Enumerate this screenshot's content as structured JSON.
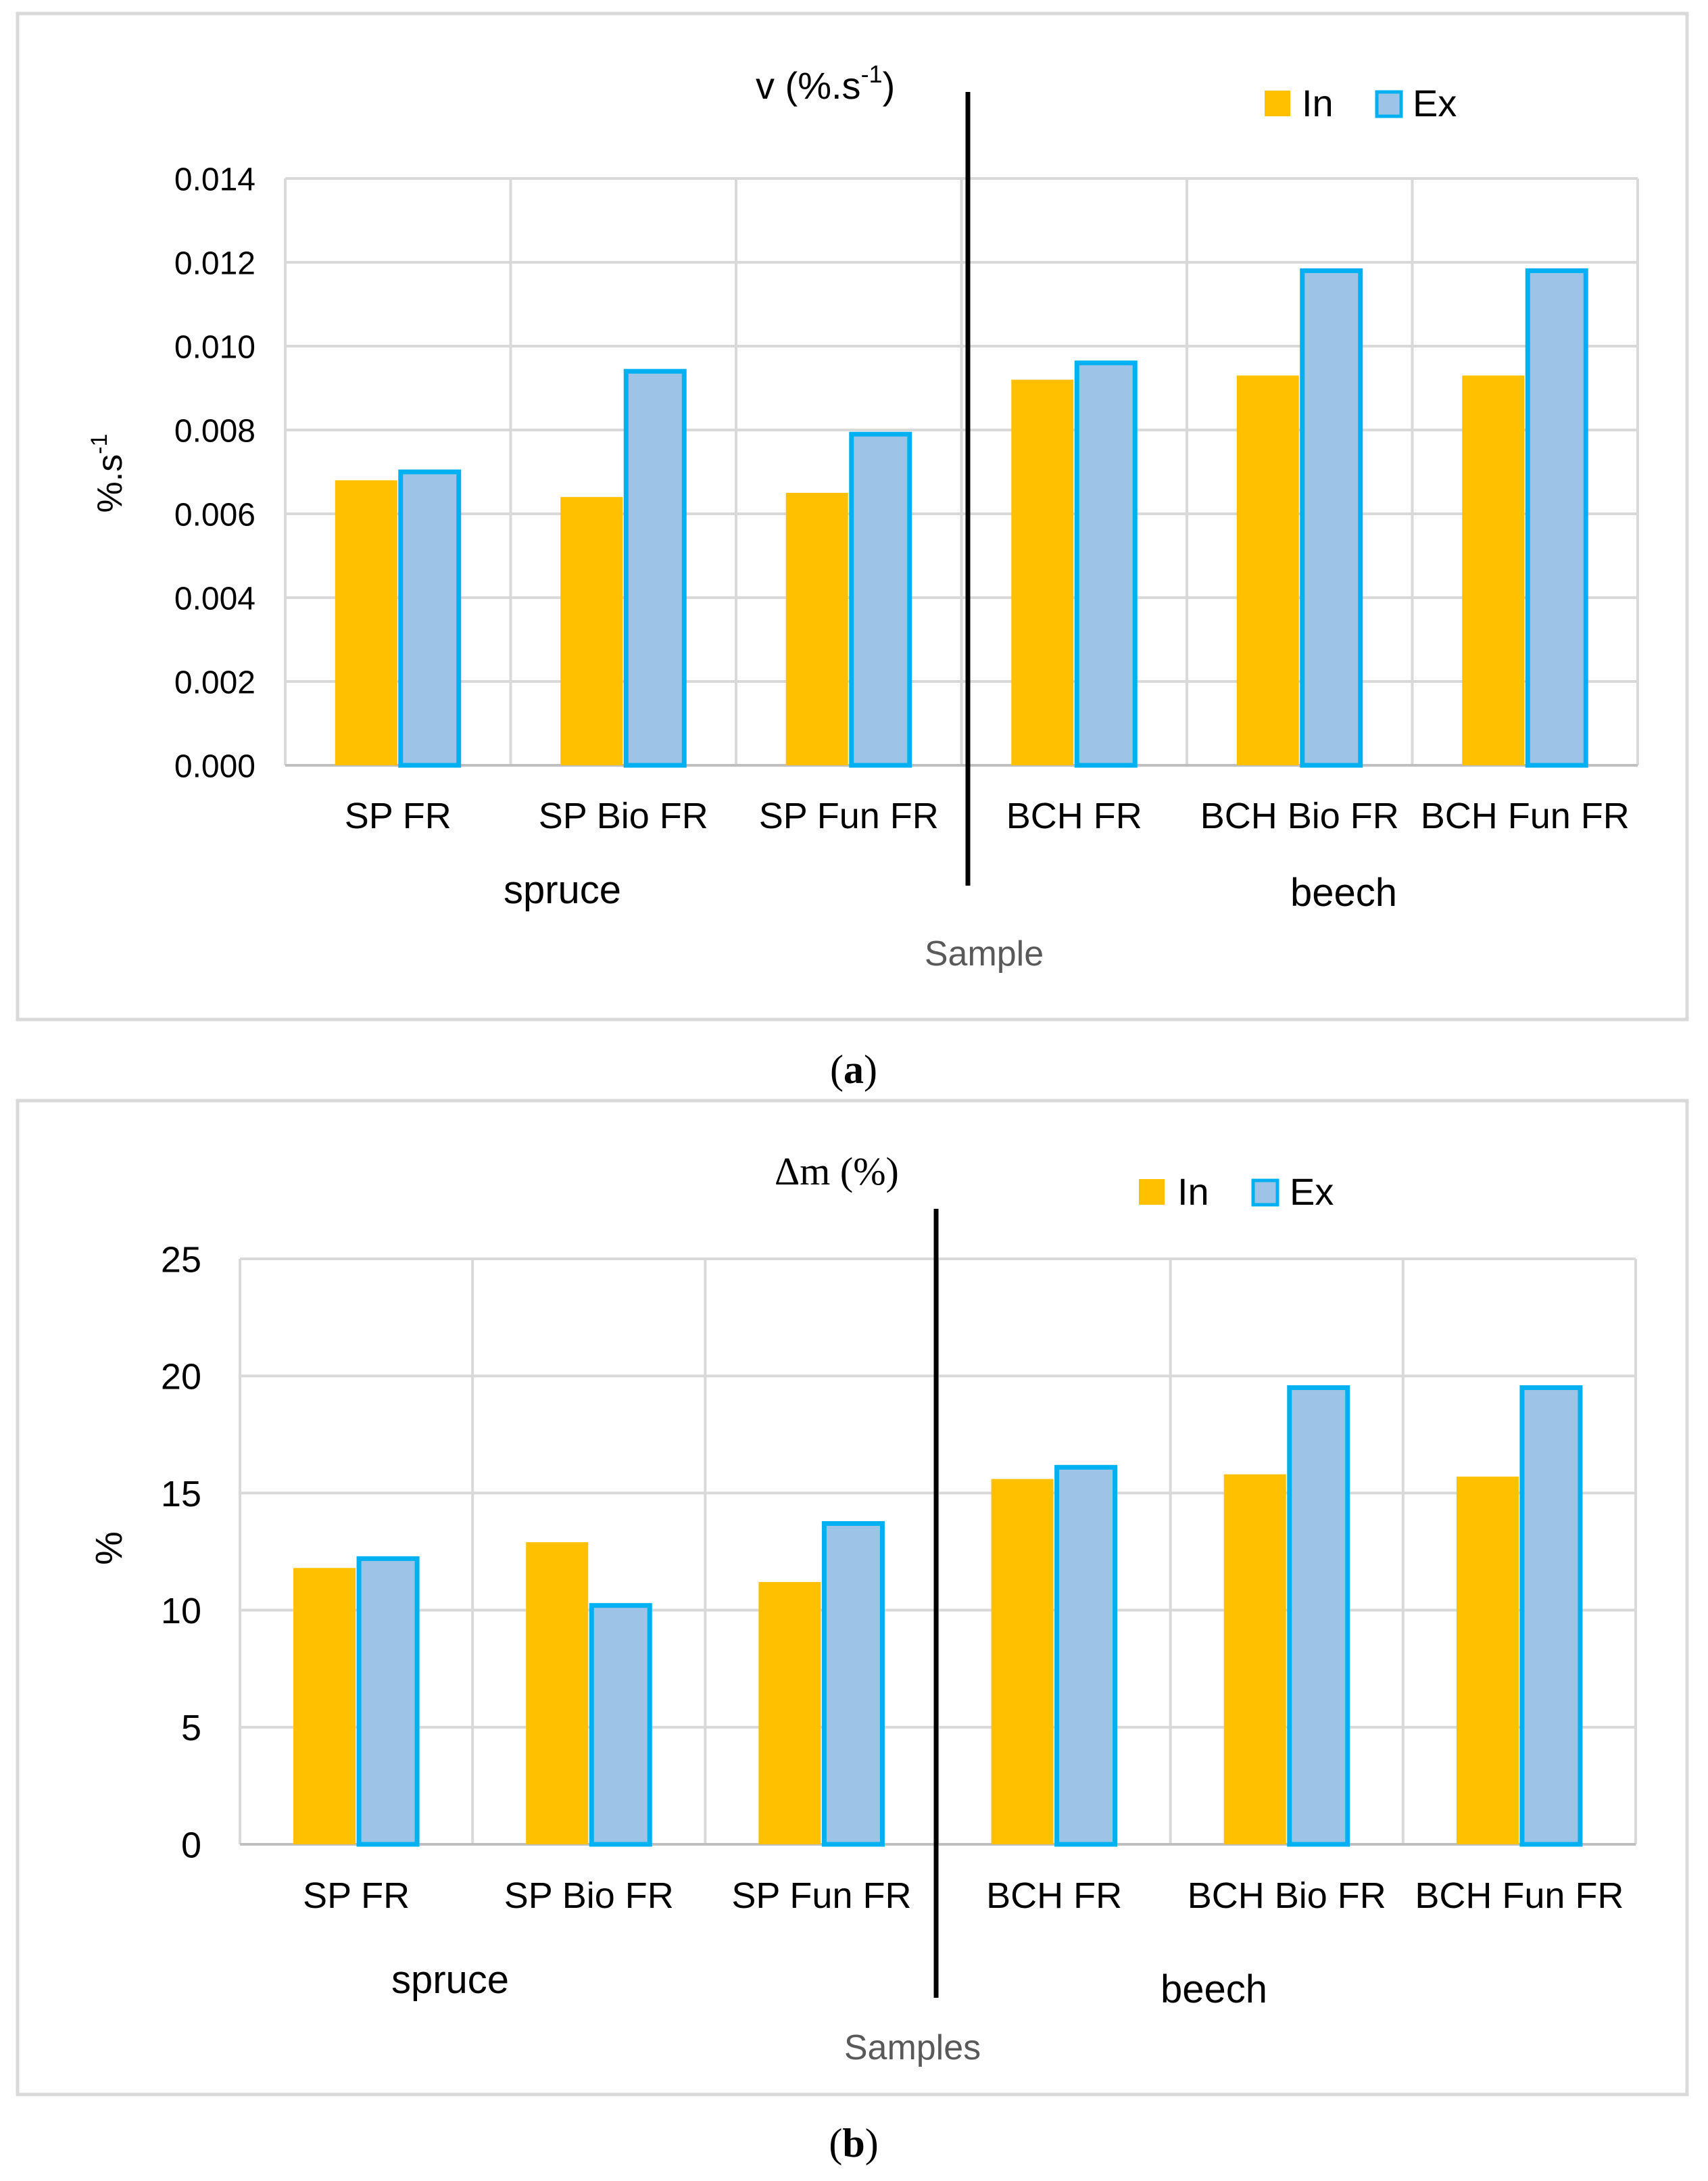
{
  "figure": {
    "panel_a_label_open": "(",
    "panel_a_label": "a",
    "panel_a_label_close": ")",
    "panel_b_label_open": "(",
    "panel_b_label": "b",
    "panel_b_label_close": ")"
  },
  "colors": {
    "in_fill": "#FFC000",
    "ex_fill": "#9DC3E6",
    "ex_stroke": "#00B0F0",
    "grid": "#D9D9D9",
    "frame": "#D9D9D9",
    "text": "#000000",
    "axis_title": "#595959"
  },
  "chart_data": [
    {
      "type": "bar",
      "title_prefix": "v  (%.s",
      "title_sup": "-1",
      "title_suffix": ")",
      "ylabel_base": "%.s",
      "ylabel_sup": "-1",
      "xlabel": "Sample",
      "ylim": [
        0,
        0.014
      ],
      "yticks": [
        "0.000",
        "0.002",
        "0.004",
        "0.006",
        "0.008",
        "0.010",
        "0.012",
        "0.014"
      ],
      "categories": [
        "SP FR",
        "SP Bio FR",
        "SP Fun FR",
        "BCH FR",
        "BCH Bio FR",
        "BCH Fun FR"
      ],
      "groups": [
        "spruce",
        "beech"
      ],
      "legend": [
        "In",
        "Ex"
      ],
      "series": [
        {
          "name": "In",
          "values": [
            0.0068,
            0.0064,
            0.0065,
            0.0092,
            0.0093,
            0.0093
          ]
        },
        {
          "name": "Ex",
          "values": [
            0.007,
            0.0094,
            0.0079,
            0.0096,
            0.0118,
            0.0118
          ]
        }
      ],
      "grid": true,
      "legend_position": "top-right"
    },
    {
      "type": "bar",
      "title": "Δm (%)",
      "ylabel": "%",
      "xlabel": "Samples",
      "ylim": [
        0,
        25
      ],
      "yticks": [
        "0",
        "5",
        "10",
        "15",
        "20",
        "25"
      ],
      "categories": [
        "SP FR",
        "SP Bio FR",
        "SP Fun FR",
        "BCH FR",
        "BCH Bio FR",
        "BCH Fun FR"
      ],
      "groups": [
        "spruce",
        "beech"
      ],
      "legend": [
        "In",
        "Ex"
      ],
      "series": [
        {
          "name": "In",
          "values": [
            11.8,
            12.9,
            11.2,
            15.6,
            15.8,
            15.7
          ]
        },
        {
          "name": "Ex",
          "values": [
            12.2,
            10.2,
            13.7,
            16.1,
            19.5,
            19.5
          ]
        }
      ],
      "grid": true,
      "legend_position": "top-right"
    }
  ]
}
